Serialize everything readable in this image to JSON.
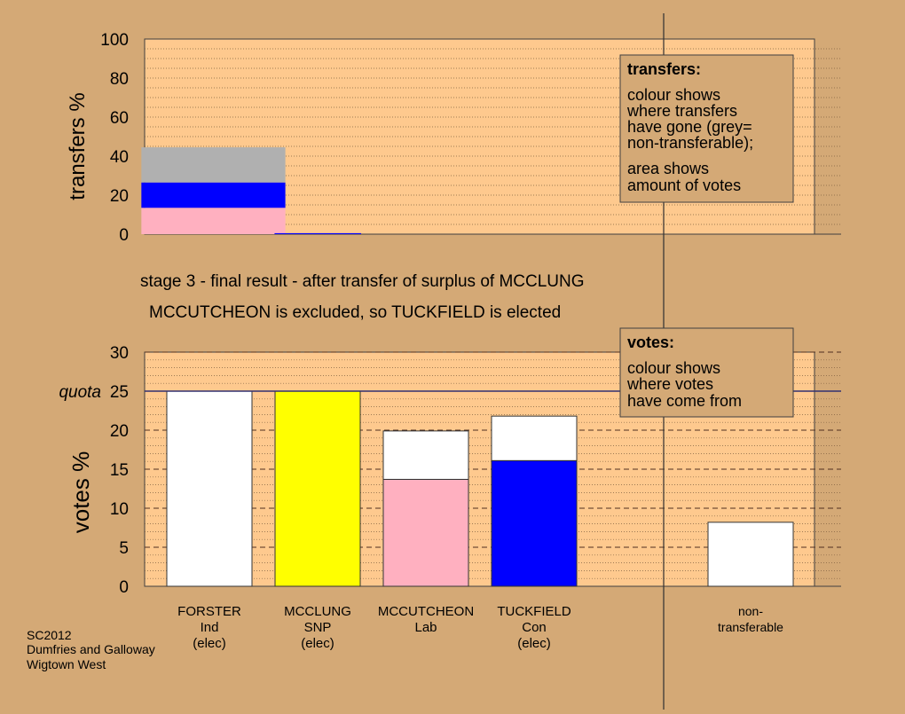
{
  "colors": {
    "background": "#d4a976",
    "plot_bg": "#fec98e",
    "white": "#ffffff",
    "yellow": "#ffff00",
    "pink": "#ffb0c0",
    "blue": "#0000ff",
    "grey": "#b0b0b0",
    "quota_line": "#303070"
  },
  "transfers_box": {
    "title": "transfers:",
    "lines": [
      "colour shows",
      "where transfers",
      "have gone (grey=",
      "non-transferable);",
      "area shows",
      "amount of votes"
    ]
  },
  "votes_box": {
    "title": "votes:",
    "lines": [
      "colour shows",
      "where votes",
      "have come from"
    ]
  },
  "stage_text_1": "stage 3 - final result - after transfer of surplus of MCCLUNG",
  "stage_text_2": "MCCUTCHEON is excluded, so TUCKFIELD is elected",
  "quota_label": "quota",
  "footer": [
    "SC2012",
    "Dumfries and Galloway",
    "Wigtown West"
  ],
  "chart_data": [
    {
      "type": "bar",
      "ylabel": "transfers %",
      "ylim": [
        0,
        100
      ],
      "yticks": [
        0,
        20,
        40,
        60,
        80,
        100
      ],
      "grid": "dotted every 5",
      "legend": "top-right",
      "bars": [
        {
          "x_from": -0.03,
          "x_to": 1.3,
          "segments": [
            {
              "color": "pink",
              "value": 13.5
            },
            {
              "color": "blue",
              "value": 13.0
            },
            {
              "color": "grey",
              "value": 18.0
            }
          ]
        },
        {
          "x_from": 1.2,
          "x_to": 2.0,
          "segments": [
            {
              "color": "blue",
              "value": 0.5
            }
          ]
        }
      ]
    },
    {
      "type": "bar",
      "ylabel": "votes %",
      "ylim": [
        0,
        30
      ],
      "yticks": [
        0,
        5,
        10,
        15,
        20,
        25,
        30
      ],
      "quota": 25,
      "grid": "dashed every 5, dotted every 1",
      "legend": "top-right",
      "categories": [
        {
          "name": "FORSTER",
          "party": "Ind",
          "status": "(elec)",
          "segments": [
            {
              "color": "white",
              "value": 25.0
            }
          ]
        },
        {
          "name": "MCCLUNG",
          "party": "SNP",
          "status": "(elec)",
          "segments": [
            {
              "color": "yellow",
              "value": 25.0
            }
          ]
        },
        {
          "name": "MCCUTCHEON",
          "party": "Lab",
          "status": "",
          "segments": [
            {
              "color": "pink",
              "value": 13.7
            },
            {
              "color": "white",
              "value": 6.2
            }
          ]
        },
        {
          "name": "TUCKFIELD",
          "party": "Con",
          "status": "(elec)",
          "segments": [
            {
              "color": "blue",
              "value": 16.1
            },
            {
              "color": "white",
              "value": 5.7
            }
          ]
        },
        {
          "name": "",
          "party": "",
          "status": "",
          "segments": []
        },
        {
          "name": "non-",
          "party": "transferable",
          "status": "",
          "segments": [
            {
              "color": "white",
              "value": 8.2
            }
          ]
        }
      ]
    }
  ]
}
